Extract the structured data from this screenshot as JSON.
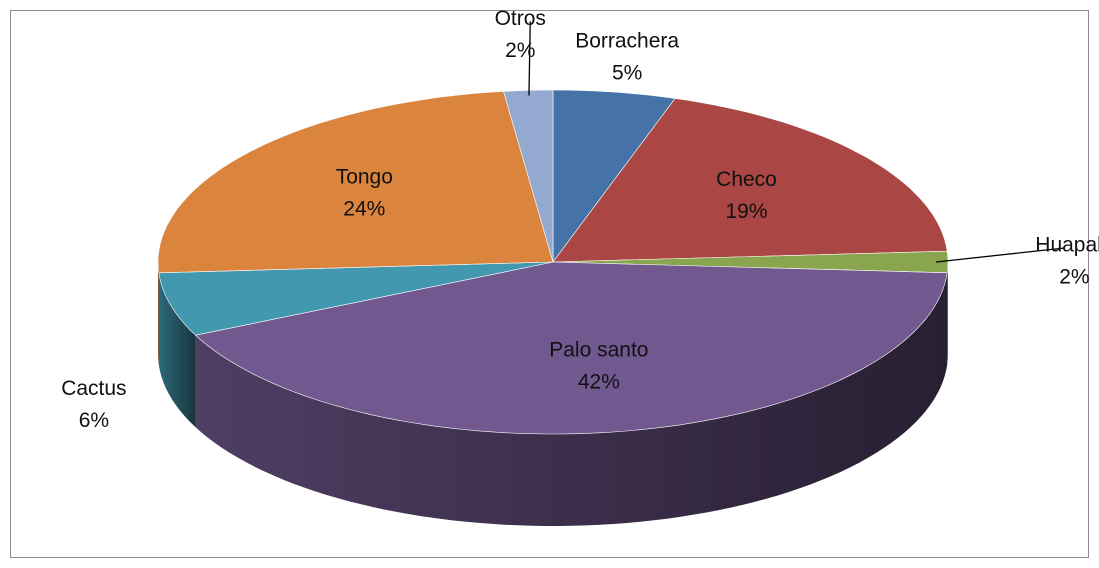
{
  "chart_data": {
    "type": "pie3d",
    "categories": [
      "Borrachera",
      "Checo",
      "Huapala",
      "Palo santo",
      "Cactus",
      "Tongo",
      "Otros"
    ],
    "values": [
      5,
      19,
      2,
      42,
      6,
      24,
      2
    ],
    "value_labels": [
      "5%",
      "19%",
      "2%",
      "42%",
      "6%",
      "24%",
      "2%"
    ],
    "colors": [
      "#4572a7",
      "#aa4643",
      "#89a54e",
      "#71588f",
      "#4198af",
      "#db843d",
      "#93a9cf"
    ]
  }
}
